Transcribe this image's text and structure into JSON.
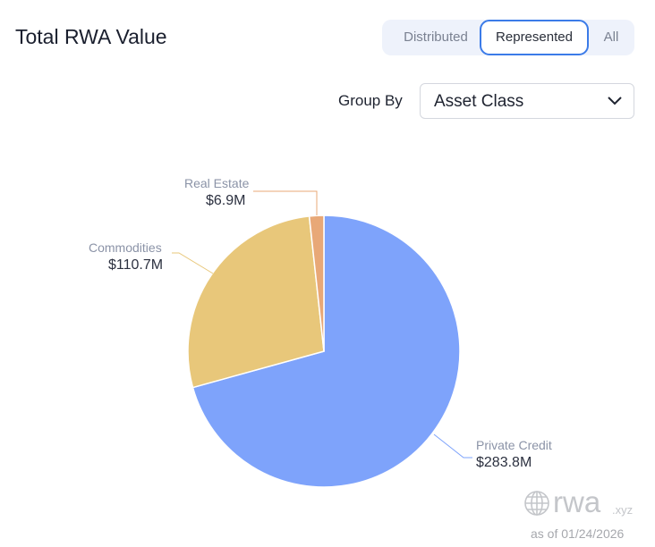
{
  "header": {
    "title": "Total RWA Value"
  },
  "toggle": {
    "options": [
      "Distributed",
      "Represented",
      "All"
    ],
    "selected": "Represented",
    "accent": "#3b7be8"
  },
  "group_by": {
    "label": "Group By",
    "value": "Asset Class"
  },
  "chart_data": {
    "type": "pie",
    "categories": [
      "Private Credit",
      "Commodities",
      "Real Estate"
    ],
    "values": [
      283.8,
      110.7,
      6.9
    ],
    "value_labels": [
      "$283.8M",
      "$110.7M",
      "$6.9M"
    ],
    "colors": [
      "#7ea3fb",
      "#e8c77a",
      "#e8a877"
    ],
    "unit": "$M",
    "start": "top, clockwise"
  },
  "footer": {
    "brand": "rwa",
    "brand_tld": ".xyz",
    "as_of": "as of 01/24/2026"
  }
}
